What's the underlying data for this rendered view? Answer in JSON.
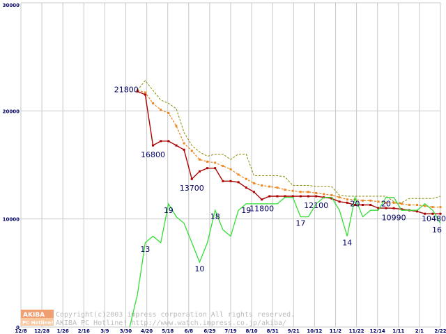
{
  "chart_data": {
    "type": "line",
    "title": "",
    "xlabel": "",
    "ylabel": "",
    "ylim": [
      0,
      30000
    ],
    "y_ticks": [
      0,
      10000,
      20000,
      30000
    ],
    "y_tick_labels": [
      "0",
      "10000",
      "20000",
      "30000"
    ],
    "x_tick_labels": [
      "12/8",
      "12/28",
      "1/26",
      "2/16",
      "3/9",
      "3/30",
      "4/20",
      "5/18",
      "6/8",
      "6/29",
      "7/19",
      "8/10",
      "8/31",
      "9/21",
      "10/12",
      "11/2",
      "11/22",
      "12/14",
      "1/11",
      "2/1",
      "2/22"
    ],
    "grid": true,
    "price_series": [
      {
        "color": "#aa0000",
        "style": "solid-markers",
        "values": [
          [
            15,
            21800
          ],
          [
            16,
            21500
          ],
          [
            17,
            16800
          ],
          [
            18,
            17200
          ],
          [
            19,
            17200
          ],
          [
            20,
            16800
          ],
          [
            21,
            16400
          ],
          [
            22,
            13700
          ],
          [
            23,
            14400
          ],
          [
            24,
            14700
          ],
          [
            25,
            14700
          ],
          [
            26,
            13500
          ],
          [
            27,
            13500
          ],
          [
            28,
            13400
          ],
          [
            29,
            12900
          ],
          [
            30,
            12500
          ],
          [
            31,
            11800
          ],
          [
            32,
            12100
          ],
          [
            33,
            12100
          ],
          [
            34,
            12100
          ],
          [
            35,
            12100
          ],
          [
            36,
            12100
          ],
          [
            37,
            12100
          ],
          [
            38,
            12100
          ],
          [
            39,
            12000
          ],
          [
            40,
            11900
          ],
          [
            41,
            11600
          ],
          [
            42,
            11500
          ],
          [
            43,
            11300
          ],
          [
            44,
            11300
          ],
          [
            45,
            11300
          ],
          [
            46,
            11000
          ],
          [
            47,
            11000
          ],
          [
            48,
            10990
          ],
          [
            49,
            10900
          ],
          [
            50,
            10800
          ],
          [
            51,
            10700
          ],
          [
            52,
            10480
          ],
          [
            53,
            10480
          ],
          [
            54,
            10480
          ]
        ]
      },
      {
        "color": "#ee8822",
        "style": "dashed-markers",
        "values": [
          [
            15,
            21900
          ],
          [
            16,
            21700
          ],
          [
            17,
            20700
          ],
          [
            18,
            20100
          ],
          [
            19,
            19800
          ],
          [
            20,
            18600
          ],
          [
            21,
            17000
          ],
          [
            22,
            16300
          ],
          [
            23,
            15500
          ],
          [
            24,
            15300
          ],
          [
            25,
            15200
          ],
          [
            26,
            14900
          ],
          [
            27,
            14600
          ],
          [
            28,
            14100
          ],
          [
            29,
            13700
          ],
          [
            30,
            13300
          ],
          [
            31,
            13100
          ],
          [
            32,
            13000
          ],
          [
            33,
            12900
          ],
          [
            34,
            12700
          ],
          [
            35,
            12600
          ],
          [
            36,
            12500
          ],
          [
            37,
            12500
          ],
          [
            38,
            12400
          ],
          [
            39,
            12300
          ],
          [
            40,
            12200
          ],
          [
            41,
            12000
          ],
          [
            42,
            11800
          ],
          [
            43,
            11800
          ],
          [
            44,
            11700
          ],
          [
            45,
            11700
          ],
          [
            46,
            11600
          ],
          [
            47,
            11500
          ],
          [
            48,
            11500
          ],
          [
            49,
            11400
          ],
          [
            50,
            11300
          ],
          [
            51,
            11300
          ],
          [
            52,
            11200
          ],
          [
            53,
            11100
          ],
          [
            54,
            11100
          ]
        ]
      },
      {
        "color": "#888800",
        "style": "dashed",
        "values": [
          [
            15,
            21900
          ],
          [
            16,
            22800
          ],
          [
            17,
            21900
          ],
          [
            18,
            21000
          ],
          [
            19,
            20700
          ],
          [
            20,
            20200
          ],
          [
            21,
            18000
          ],
          [
            22,
            16800
          ],
          [
            23,
            16200
          ],
          [
            24,
            15800
          ],
          [
            25,
            16000
          ],
          [
            26,
            16000
          ],
          [
            27,
            15500
          ],
          [
            28,
            16000
          ],
          [
            29,
            16000
          ],
          [
            30,
            14000
          ],
          [
            31,
            14000
          ],
          [
            32,
            14000
          ],
          [
            33,
            14000
          ],
          [
            34,
            13900
          ],
          [
            35,
            13100
          ],
          [
            36,
            13100
          ],
          [
            37,
            13100
          ],
          [
            38,
            13000
          ],
          [
            39,
            13000
          ],
          [
            40,
            13000
          ],
          [
            41,
            12200
          ],
          [
            42,
            12100
          ],
          [
            43,
            12100
          ],
          [
            44,
            12100
          ],
          [
            45,
            12100
          ],
          [
            46,
            12100
          ],
          [
            47,
            12100
          ],
          [
            48,
            11600
          ],
          [
            49,
            11500
          ],
          [
            50,
            11900
          ],
          [
            51,
            11900
          ],
          [
            52,
            11900
          ],
          [
            53,
            11900
          ],
          [
            54,
            12100
          ]
        ]
      }
    ],
    "count_series": {
      "color": "#33dd33",
      "y_scale_max": 50,
      "values": [
        [
          14,
          0
        ],
        [
          15,
          5
        ],
        [
          16,
          13
        ],
        [
          17,
          14
        ],
        [
          18,
          13
        ],
        [
          19,
          19
        ],
        [
          20,
          17
        ],
        [
          21,
          16
        ],
        [
          22,
          13
        ],
        [
          23,
          10
        ],
        [
          24,
          13
        ],
        [
          25,
          18
        ],
        [
          26,
          15
        ],
        [
          27,
          14
        ],
        [
          28,
          18
        ],
        [
          29,
          19
        ],
        [
          30,
          19
        ],
        [
          31,
          19
        ],
        [
          32,
          19
        ],
        [
          33,
          19
        ],
        [
          34,
          20
        ],
        [
          35,
          20
        ],
        [
          36,
          17
        ],
        [
          37,
          17
        ],
        [
          38,
          19
        ],
        [
          39,
          20
        ],
        [
          40,
          20
        ],
        [
          41,
          18
        ],
        [
          42,
          14
        ],
        [
          43,
          20
        ],
        [
          44,
          17
        ],
        [
          45,
          18
        ],
        [
          46,
          18
        ],
        [
          47,
          20
        ],
        [
          48,
          20
        ],
        [
          49,
          18
        ],
        [
          50,
          18
        ],
        [
          51,
          18
        ],
        [
          52,
          19
        ],
        [
          53,
          18
        ],
        [
          54,
          16
        ]
      ]
    },
    "data_labels": [
      {
        "text": "21800",
        "series": "price",
        "x": 15,
        "y": 21800
      },
      {
        "text": "16800",
        "series": "price",
        "x": 17,
        "y": 16800
      },
      {
        "text": "13700",
        "series": "price",
        "x": 22,
        "y": 13700
      },
      {
        "text": "11800",
        "series": "price",
        "x": 31,
        "y": 11800
      },
      {
        "text": "12100",
        "series": "price",
        "x": 38,
        "y": 12100
      },
      {
        "text": "10990",
        "series": "price",
        "x": 48,
        "y": 10990
      },
      {
        "text": "10480",
        "series": "price",
        "x": 54,
        "y": 10480
      },
      {
        "text": "13",
        "series": "count",
        "x": 16,
        "y": 13
      },
      {
        "text": "19",
        "series": "count",
        "x": 19,
        "y": 19
      },
      {
        "text": "10",
        "series": "count",
        "x": 23,
        "y": 10
      },
      {
        "text": "18",
        "series": "count",
        "x": 25,
        "y": 18
      },
      {
        "text": "19",
        "series": "count",
        "x": 29,
        "y": 19
      },
      {
        "text": "17",
        "series": "count",
        "x": 36,
        "y": 17
      },
      {
        "text": "14",
        "series": "count",
        "x": 42,
        "y": 14
      },
      {
        "text": "20",
        "series": "count",
        "x": 43,
        "y": 20
      },
      {
        "text": "20",
        "series": "count",
        "x": 47,
        "y": 20
      },
      {
        "text": "16",
        "series": "count",
        "x": 54,
        "y": 16
      }
    ]
  },
  "watermark": {
    "logo_top": "AKIBA",
    "logo_bottom": "PC Hotline!",
    "line1": "Copyright(c)2003 impress corporation All rights reserved.",
    "line2": "AKIBA PC Hotline! http://www.watch.impress.co.jp/akiba/"
  },
  "colors": {
    "grid": "#c8c8c8",
    "axis_text": "#000066",
    "logo_orange": "#f0a070"
  }
}
